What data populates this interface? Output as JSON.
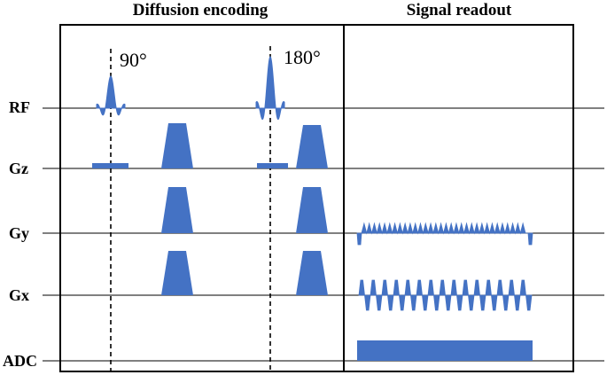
{
  "sections": {
    "diffusion_title": "Diffusion encoding",
    "readout_title": "Signal readout"
  },
  "channels": {
    "rf": "RF",
    "gz": "Gz",
    "gy": "Gy",
    "gx": "Gx",
    "adc": "ADC"
  },
  "pulses": {
    "excitation": "90°",
    "refocusing": "180°"
  },
  "colors": {
    "waveform": "#4472C4",
    "line": "#000000"
  },
  "readout": {
    "gy_blips": 32,
    "gx_lobes": 30
  }
}
